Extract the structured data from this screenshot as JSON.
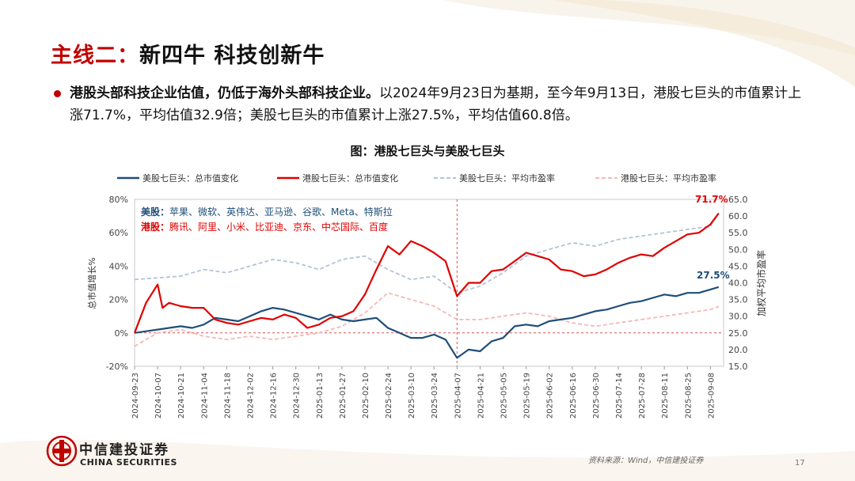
{
  "slide": {
    "title_part1": "主线二：",
    "title_part2": "新四牛  科技创新牛",
    "bullet_bold": "港股头部科技企业估值，仍低于海外头部科技企业。",
    "bullet_text": "以2024年9月23日为基期，至今年9月13日，港股七巨头的市值累计上涨71.7%，平均估值32.9倍；美股七巨头的市值累计上涨27.5%，平均估值60.8倍。",
    "source": "资料来源：Wind，中信建投证券",
    "page_number": "17",
    "logo_cn": "中信建投证券",
    "logo_en": "CHINA SECURITIES"
  },
  "colors": {
    "title_red": "#c00000",
    "us_line": "#1f4e79",
    "hk_line": "#e00000",
    "us_pe": "#b4c3d6",
    "hk_pe": "#f4b8b8",
    "marker_line": "#e05050"
  },
  "chart_data": {
    "type": "line",
    "title": "图：港股七巨头与美股七巨头",
    "ylabel_left": "总市值增长%",
    "ylabel_right": "加权平均市盈率",
    "y_left_range": [
      -20,
      80
    ],
    "y_left_ticks": [
      "-20%",
      "0%",
      "20%",
      "40%",
      "60%",
      "80%"
    ],
    "y_right_range": [
      15,
      65
    ],
    "y_right_ticks": [
      "15.0",
      "20.0",
      "25.0",
      "30.0",
      "35.0",
      "40.0",
      "45.0",
      "50.0",
      "55.0",
      "60.0",
      "65.0"
    ],
    "x_ticks": [
      "2024-09-23",
      "2024-10-07",
      "2024-10-21",
      "2024-11-04",
      "2024-11-18",
      "2024-12-02",
      "2024-12-16",
      "2024-12-30",
      "2025-01-13",
      "2025-01-27",
      "2025-02-10",
      "2025-02-24",
      "2025-03-10",
      "2025-03-24",
      "2025-04-07",
      "2025-04-21",
      "2025-05-05",
      "2025-05-19",
      "2025-06-02",
      "2025-06-16",
      "2025-06-30",
      "2025-07-14",
      "2025-07-28",
      "2025-08-11",
      "2025-08-25",
      "2025-09-08"
    ],
    "reference_date": "2025-04-07",
    "grid": false,
    "legend_position": "top",
    "annotation_box": {
      "us_prefix": "美股：",
      "us_members": "苹果、微软、英伟达、亚马逊、谷歌、Meta、特斯拉",
      "hk_prefix": "港股：",
      "hk_members": "腾讯、阿里、小米、比亚迪、京东、中芯国际、百度"
    },
    "end_labels": {
      "hk": "71.7%",
      "us": "27.5%"
    },
    "series": [
      {
        "name": "美股七巨头：总市值变化",
        "axis": "left",
        "style": "solid",
        "points": [
          [
            "2024-09-23",
            0
          ],
          [
            "2024-09-30",
            1
          ],
          [
            "2024-10-07",
            2
          ],
          [
            "2024-10-14",
            3
          ],
          [
            "2024-10-21",
            4
          ],
          [
            "2024-10-28",
            3
          ],
          [
            "2024-11-04",
            5
          ],
          [
            "2024-11-11",
            9
          ],
          [
            "2024-11-18",
            8
          ],
          [
            "2024-11-25",
            7
          ],
          [
            "2024-12-02",
            10
          ],
          [
            "2024-12-09",
            13
          ],
          [
            "2024-12-16",
            15
          ],
          [
            "2024-12-23",
            14
          ],
          [
            "2024-12-30",
            12
          ],
          [
            "2025-01-06",
            10
          ],
          [
            "2025-01-13",
            8
          ],
          [
            "2025-01-20",
            11
          ],
          [
            "2025-01-27",
            8
          ],
          [
            "2025-02-03",
            7
          ],
          [
            "2025-02-10",
            8
          ],
          [
            "2025-02-17",
            9
          ],
          [
            "2025-02-24",
            3
          ],
          [
            "2025-03-03",
            0
          ],
          [
            "2025-03-10",
            -3
          ],
          [
            "2025-03-17",
            -3
          ],
          [
            "2025-03-24",
            -1
          ],
          [
            "2025-03-31",
            -4
          ],
          [
            "2025-04-07",
            -15
          ],
          [
            "2025-04-14",
            -10
          ],
          [
            "2025-04-21",
            -11
          ],
          [
            "2025-04-28",
            -5
          ],
          [
            "2025-05-05",
            -3
          ],
          [
            "2025-05-12",
            4
          ],
          [
            "2025-05-19",
            5
          ],
          [
            "2025-05-26",
            4
          ],
          [
            "2025-06-02",
            7
          ],
          [
            "2025-06-09",
            8
          ],
          [
            "2025-06-16",
            9
          ],
          [
            "2025-06-23",
            11
          ],
          [
            "2025-06-30",
            13
          ],
          [
            "2025-07-07",
            14
          ],
          [
            "2025-07-14",
            16
          ],
          [
            "2025-07-21",
            18
          ],
          [
            "2025-07-28",
            19
          ],
          [
            "2025-08-04",
            21
          ],
          [
            "2025-08-11",
            23
          ],
          [
            "2025-08-18",
            22
          ],
          [
            "2025-08-25",
            24
          ],
          [
            "2025-09-01",
            24
          ],
          [
            "2025-09-08",
            26
          ],
          [
            "2025-09-13",
            27.5
          ]
        ]
      },
      {
        "name": "港股七巨头：总市值变化",
        "axis": "left",
        "style": "solid",
        "points": [
          [
            "2024-09-23",
            0
          ],
          [
            "2024-09-30",
            18
          ],
          [
            "2024-10-07",
            29
          ],
          [
            "2024-10-10",
            15
          ],
          [
            "2024-10-14",
            18
          ],
          [
            "2024-10-21",
            16
          ],
          [
            "2024-10-28",
            15
          ],
          [
            "2024-11-04",
            15
          ],
          [
            "2024-11-11",
            8
          ],
          [
            "2024-11-18",
            6
          ],
          [
            "2024-11-25",
            5
          ],
          [
            "2024-12-02",
            7
          ],
          [
            "2024-12-09",
            9
          ],
          [
            "2024-12-16",
            8
          ],
          [
            "2024-12-23",
            11
          ],
          [
            "2024-12-30",
            9
          ],
          [
            "2025-01-06",
            3
          ],
          [
            "2025-01-13",
            5
          ],
          [
            "2025-01-20",
            9
          ],
          [
            "2025-01-27",
            10
          ],
          [
            "2025-02-03",
            13
          ],
          [
            "2025-02-10",
            23
          ],
          [
            "2025-02-17",
            38
          ],
          [
            "2025-02-24",
            52
          ],
          [
            "2025-03-03",
            47
          ],
          [
            "2025-03-10",
            55
          ],
          [
            "2025-03-17",
            52
          ],
          [
            "2025-03-24",
            48
          ],
          [
            "2025-03-31",
            43
          ],
          [
            "2025-04-07",
            22
          ],
          [
            "2025-04-14",
            30
          ],
          [
            "2025-04-21",
            30
          ],
          [
            "2025-04-28",
            37
          ],
          [
            "2025-05-05",
            38
          ],
          [
            "2025-05-12",
            43
          ],
          [
            "2025-05-19",
            48
          ],
          [
            "2025-05-26",
            46
          ],
          [
            "2025-06-02",
            44
          ],
          [
            "2025-06-09",
            38
          ],
          [
            "2025-06-16",
            37
          ],
          [
            "2025-06-23",
            34
          ],
          [
            "2025-06-30",
            35
          ],
          [
            "2025-07-07",
            38
          ],
          [
            "2025-07-14",
            42
          ],
          [
            "2025-07-21",
            45
          ],
          [
            "2025-07-28",
            47
          ],
          [
            "2025-08-04",
            46
          ],
          [
            "2025-08-11",
            51
          ],
          [
            "2025-08-18",
            55
          ],
          [
            "2025-08-25",
            59
          ],
          [
            "2025-09-01",
            60
          ],
          [
            "2025-09-08",
            65
          ],
          [
            "2025-09-13",
            71.7
          ]
        ]
      },
      {
        "name": "美股七巨头：平均市盈率",
        "axis": "right",
        "style": "dashed",
        "points": [
          [
            "2024-09-23",
            41
          ],
          [
            "2024-10-07",
            41.5
          ],
          [
            "2024-10-21",
            42
          ],
          [
            "2024-11-04",
            44
          ],
          [
            "2024-11-18",
            43
          ],
          [
            "2024-12-02",
            45
          ],
          [
            "2024-12-16",
            47
          ],
          [
            "2024-12-30",
            46
          ],
          [
            "2025-01-13",
            44
          ],
          [
            "2025-01-27",
            47
          ],
          [
            "2025-02-10",
            48
          ],
          [
            "2025-02-24",
            44
          ],
          [
            "2025-03-10",
            41
          ],
          [
            "2025-03-24",
            42
          ],
          [
            "2025-04-07",
            37
          ],
          [
            "2025-04-21",
            39
          ],
          [
            "2025-05-05",
            43
          ],
          [
            "2025-05-19",
            48
          ],
          [
            "2025-06-02",
            50
          ],
          [
            "2025-06-16",
            52
          ],
          [
            "2025-06-30",
            51
          ],
          [
            "2025-07-14",
            53
          ],
          [
            "2025-07-28",
            54
          ],
          [
            "2025-08-11",
            55
          ],
          [
            "2025-08-25",
            56
          ],
          [
            "2025-09-08",
            57
          ],
          [
            "2025-09-13",
            60.8
          ]
        ]
      },
      {
        "name": "港股七巨头：平均市盈率",
        "axis": "right",
        "style": "dashed",
        "points": [
          [
            "2024-09-23",
            21
          ],
          [
            "2024-10-07",
            25
          ],
          [
            "2024-10-21",
            26
          ],
          [
            "2024-11-04",
            24
          ],
          [
            "2024-11-18",
            23
          ],
          [
            "2024-12-02",
            24
          ],
          [
            "2024-12-16",
            23
          ],
          [
            "2024-12-30",
            24
          ],
          [
            "2025-01-13",
            25
          ],
          [
            "2025-01-27",
            27
          ],
          [
            "2025-02-10",
            31
          ],
          [
            "2025-02-24",
            37
          ],
          [
            "2025-03-10",
            35
          ],
          [
            "2025-03-24",
            33
          ],
          [
            "2025-04-07",
            29
          ],
          [
            "2025-04-21",
            29
          ],
          [
            "2025-05-05",
            30
          ],
          [
            "2025-05-19",
            31
          ],
          [
            "2025-06-02",
            30
          ],
          [
            "2025-06-16",
            28
          ],
          [
            "2025-06-30",
            27
          ],
          [
            "2025-07-14",
            28
          ],
          [
            "2025-07-28",
            29
          ],
          [
            "2025-08-11",
            30
          ],
          [
            "2025-08-25",
            31
          ],
          [
            "2025-09-08",
            32
          ],
          [
            "2025-09-13",
            32.9
          ]
        ]
      }
    ]
  }
}
